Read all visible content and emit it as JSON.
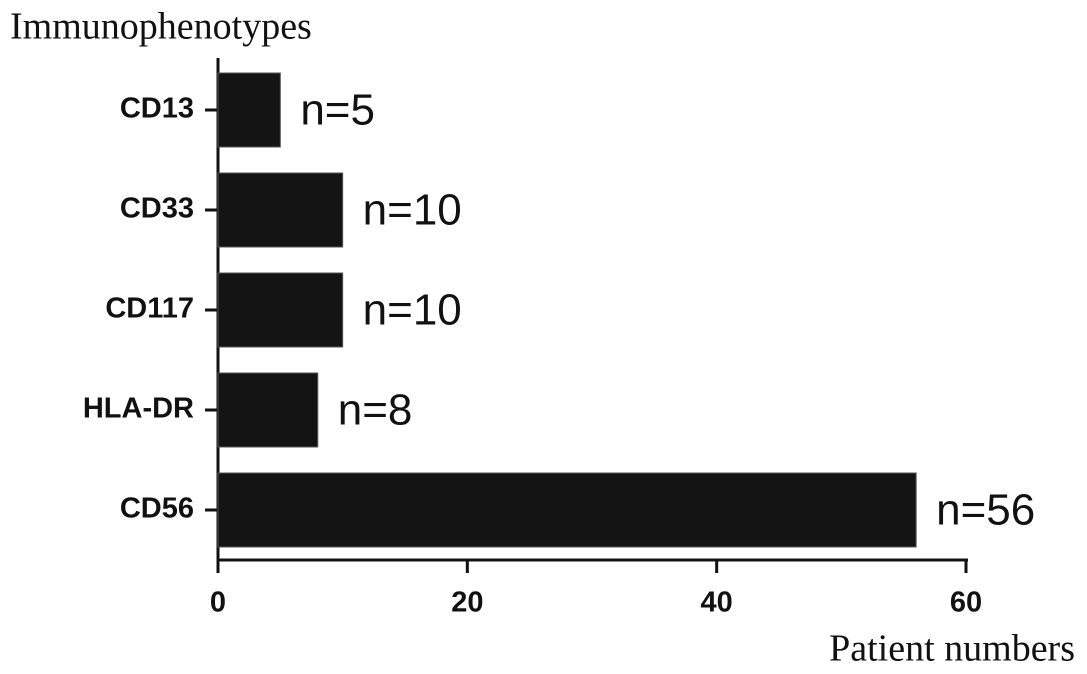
{
  "chart_data": {
    "type": "bar",
    "orientation": "horizontal",
    "title": "Immunophenotypes",
    "x_label": "Patient numbers",
    "categories": [
      "CD13",
      "CD33",
      "CD117",
      "HLA-DR",
      "CD56"
    ],
    "values": [
      5,
      10,
      10,
      8,
      56
    ],
    "value_labels": [
      "n=5",
      "n=10",
      "n=10",
      "n=8",
      "n=56"
    ],
    "color": "#141414",
    "xlim": [
      0,
      60
    ],
    "xticks": [
      0,
      20,
      40,
      60
    ],
    "grid": false
  }
}
